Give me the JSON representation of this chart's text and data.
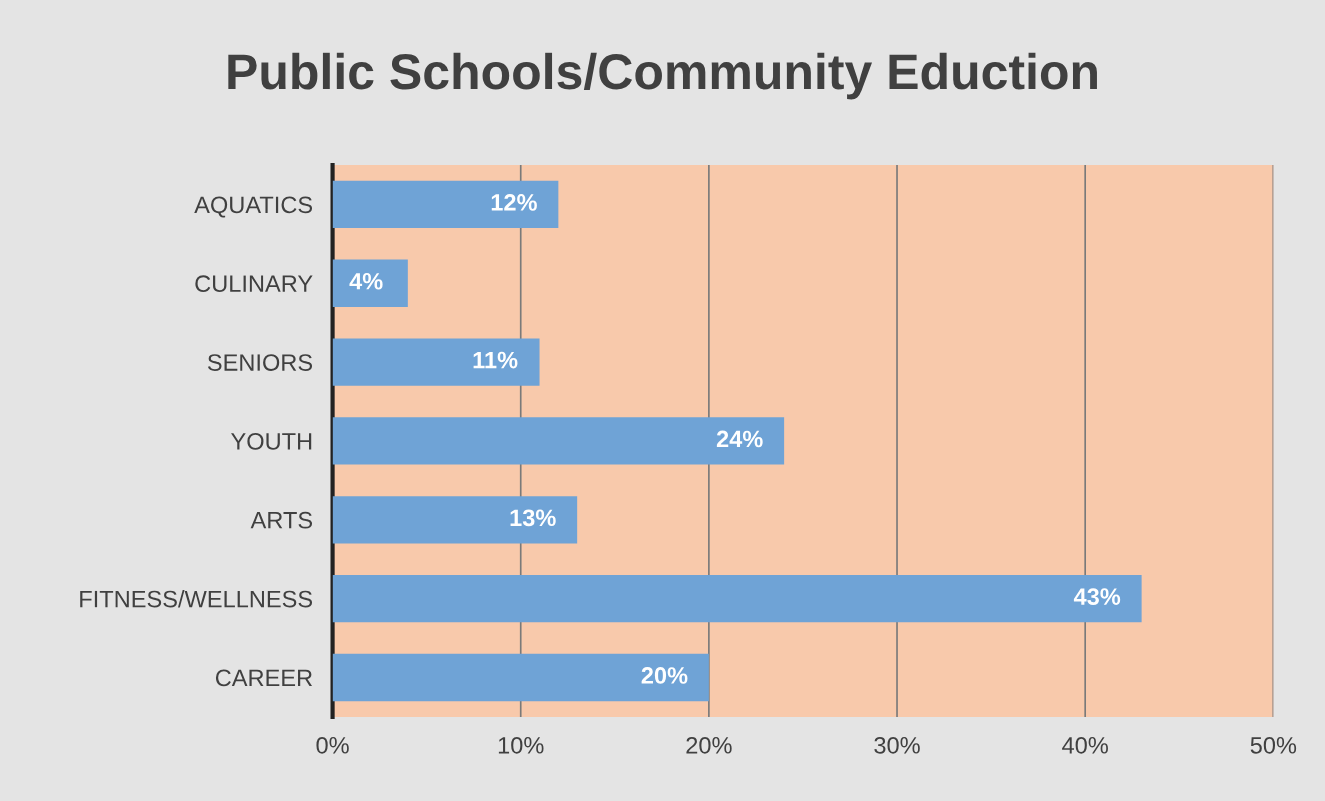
{
  "chart_data": {
    "type": "bar",
    "orientation": "horizontal",
    "title": "Public Schools/Community Eduction",
    "categories": [
      "AQUATICS",
      "CULINARY",
      "SENIORS",
      "YOUTH",
      "ARTS",
      "FITNESS/WELLNESS",
      "CAREER"
    ],
    "values": [
      12,
      4,
      11,
      24,
      13,
      43,
      20
    ],
    "value_labels": [
      "12%",
      "4%",
      "11%",
      "24%",
      "13%",
      "43%",
      "20%"
    ],
    "color": "#6fa3d6",
    "xlim": [
      0,
      50
    ],
    "xticks": [
      {
        "value": 0,
        "label": "0%"
      },
      {
        "value": 10,
        "label": "10%"
      },
      {
        "value": 20,
        "label": "20%"
      },
      {
        "value": 30,
        "label": "30%"
      },
      {
        "value": 40,
        "label": "40%"
      },
      {
        "value": 50,
        "label": "50%"
      }
    ],
    "grid": "x"
  }
}
